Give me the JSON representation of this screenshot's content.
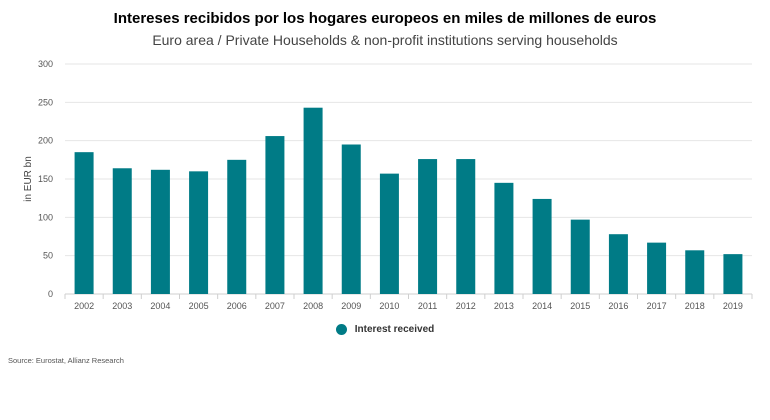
{
  "chart_data": {
    "type": "bar",
    "title": "Intereses recibidos por los hogares europeos en miles de millones de euros",
    "subtitle": "Euro area / Private Households & non-profit institutions serving households",
    "xlabel": "",
    "ylabel": "in EUR bn",
    "ylim": [
      0,
      300
    ],
    "yticks": [
      0,
      50,
      100,
      150,
      200,
      250,
      300
    ],
    "grid": true,
    "legend_position": "bottom",
    "categories": [
      "2002",
      "2003",
      "2004",
      "2005",
      "2006",
      "2007",
      "2008",
      "2009",
      "2010",
      "2011",
      "2012",
      "2013",
      "2014",
      "2015",
      "2016",
      "2017",
      "2018",
      "2019"
    ],
    "series": [
      {
        "name": "Interest received",
        "color": "#007b86",
        "values": [
          185,
          164,
          162,
          160,
          175,
          206,
          243,
          195,
          157,
          176,
          176,
          145,
          124,
          97,
          78,
          67,
          57,
          52
        ]
      }
    ],
    "source": "Source: Eurostat, Allianz Research"
  }
}
